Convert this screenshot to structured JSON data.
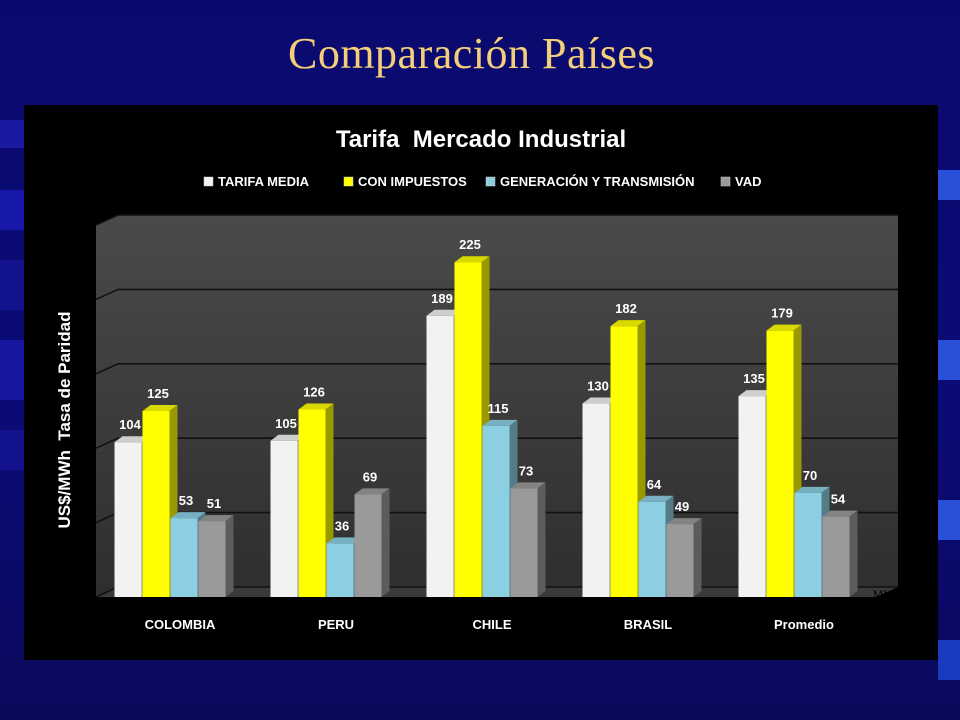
{
  "slide": {
    "title": "Comparación Países",
    "footnote": "MW/h"
  },
  "chart_data": {
    "type": "bar",
    "title": "Tarifa  Mercado Industrial",
    "ylabel": "US$/MWh  Tasa de Paridad",
    "xlabel": "",
    "ylim": [
      0,
      250
    ],
    "grid": true,
    "legend_position": "top",
    "categories": [
      "COLOMBIA",
      "PERU",
      "CHILE",
      "BRASIL",
      "Promedio"
    ],
    "series": [
      {
        "name": "TARIFA MEDIA",
        "values": [
          104,
          105,
          189,
          130,
          135
        ],
        "color": "#f2f2f2"
      },
      {
        "name": "CON IMPUESTOS",
        "values": [
          125,
          126,
          225,
          182,
          179
        ],
        "color": "#ffff00"
      },
      {
        "name": "GENERACIÓN Y TRANSMISIÓN",
        "values": [
          53,
          36,
          115,
          64,
          70
        ],
        "color": "#8ccfe3"
      },
      {
        "name": "VAD",
        "values": [
          51,
          69,
          73,
          49,
          54
        ],
        "color": "#9a9a9a"
      }
    ]
  }
}
